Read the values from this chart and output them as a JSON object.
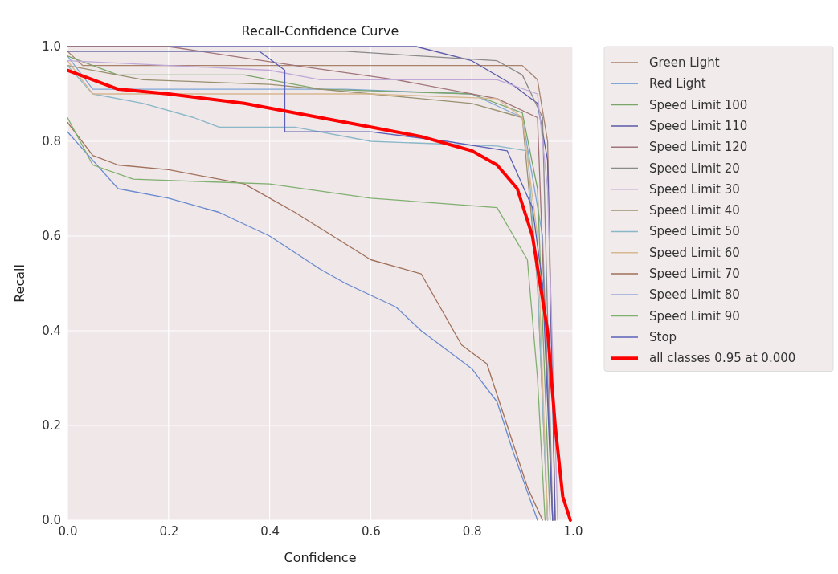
{
  "chart_data": {
    "type": "line",
    "title": "Recall-Confidence Curve",
    "xlabel": "Confidence",
    "ylabel": "Recall",
    "xlim": [
      0,
      1
    ],
    "ylim": [
      0,
      1
    ],
    "xticks": [
      {
        "value": 0,
        "label": "0.0"
      },
      {
        "value": 0.2,
        "label": "0.2"
      },
      {
        "value": 0.4,
        "label": "0.4"
      },
      {
        "value": 0.6,
        "label": "0.6"
      },
      {
        "value": 0.8,
        "label": "0.8"
      },
      {
        "value": 1,
        "label": "1.0"
      }
    ],
    "yticks": [
      {
        "value": 0,
        "label": "0.0"
      },
      {
        "value": 0.2,
        "label": "0.2"
      },
      {
        "value": 0.4,
        "label": "0.4"
      },
      {
        "value": 0.6,
        "label": "0.6"
      },
      {
        "value": 0.8,
        "label": "0.8"
      },
      {
        "value": 1,
        "label": "1.0"
      }
    ],
    "grid": true,
    "legend": "right",
    "series": [
      {
        "name": "Green Light",
        "color": "#a8826a",
        "x": [
          0,
          0.03,
          0.9,
          0.93,
          0.95,
          0.965
        ],
        "values": [
          0.99,
          0.96,
          0.96,
          0.93,
          0.8,
          0
        ]
      },
      {
        "name": "Red Light",
        "color": "#7fa6d6",
        "x": [
          0,
          0.05,
          0.55,
          0.8,
          0.9,
          0.94,
          0.96
        ],
        "values": [
          0.98,
          0.91,
          0.91,
          0.9,
          0.85,
          0.6,
          0
        ]
      },
      {
        "name": "Speed Limit 100",
        "color": "#7aa66a",
        "x": [
          0,
          0.1,
          0.35,
          0.5,
          0.8,
          0.9,
          0.93,
          0.955
        ],
        "values": [
          0.98,
          0.94,
          0.94,
          0.91,
          0.9,
          0.86,
          0.7,
          0
        ]
      },
      {
        "name": "Speed Limit 110",
        "color": "#5a5aa8",
        "x": [
          0,
          0.69,
          0.8,
          0.88,
          0.93,
          0.95,
          0.965
        ],
        "values": [
          1,
          1,
          0.97,
          0.92,
          0.88,
          0.76,
          0
        ]
      },
      {
        "name": "Speed Limit 120",
        "color": "#a07478",
        "x": [
          0,
          0.2,
          0.45,
          0.65,
          0.85,
          0.93,
          0.96
        ],
        "values": [
          1,
          1,
          0.96,
          0.93,
          0.89,
          0.85,
          0
        ]
      },
      {
        "name": "Speed Limit 20",
        "color": "#8a8a8a",
        "x": [
          0,
          0.55,
          0.85,
          0.9,
          0.94,
          0.96
        ],
        "values": [
          0.99,
          0.99,
          0.97,
          0.94,
          0.85,
          0
        ]
      },
      {
        "name": "Speed Limit 30",
        "color": "#c0a8d8",
        "x": [
          0,
          0.2,
          0.4,
          0.5,
          0.85,
          0.93,
          0.95,
          0.97
        ],
        "values": [
          0.97,
          0.96,
          0.95,
          0.93,
          0.93,
          0.9,
          0.7,
          0
        ]
      },
      {
        "name": "Speed Limit 40",
        "color": "#9a9070",
        "x": [
          0,
          0.15,
          0.4,
          0.6,
          0.8,
          0.9,
          0.93,
          0.95
        ],
        "values": [
          0.96,
          0.93,
          0.92,
          0.9,
          0.88,
          0.85,
          0.5,
          0
        ]
      },
      {
        "name": "Speed Limit 50",
        "color": "#8ab8c8",
        "x": [
          0,
          0.05,
          0.15,
          0.25,
          0.3,
          0.45,
          0.6,
          0.85,
          0.91,
          0.93,
          0.95
        ],
        "values": [
          0.96,
          0.9,
          0.88,
          0.85,
          0.83,
          0.83,
          0.8,
          0.79,
          0.78,
          0.5,
          0
        ]
      },
      {
        "name": "Speed Limit 60",
        "color": "#d8b890",
        "x": [
          0,
          0.05,
          0.6,
          0.85,
          0.9,
          0.93,
          0.95
        ],
        "values": [
          0.97,
          0.9,
          0.9,
          0.89,
          0.85,
          0.6,
          0
        ]
      },
      {
        "name": "Speed Limit 70",
        "color": "#a0705a",
        "x": [
          0,
          0.05,
          0.1,
          0.2,
          0.35,
          0.45,
          0.6,
          0.7,
          0.78,
          0.83,
          0.87,
          0.91,
          0.94
        ],
        "values": [
          0.84,
          0.77,
          0.75,
          0.74,
          0.71,
          0.65,
          0.55,
          0.52,
          0.37,
          0.33,
          0.2,
          0.07,
          0
        ]
      },
      {
        "name": "Speed Limit 80",
        "color": "#6a8ad0",
        "x": [
          0,
          0.05,
          0.1,
          0.2,
          0.3,
          0.4,
          0.5,
          0.55,
          0.65,
          0.7,
          0.8,
          0.85,
          0.88,
          0.91,
          0.93
        ],
        "values": [
          0.82,
          0.76,
          0.7,
          0.68,
          0.65,
          0.6,
          0.53,
          0.5,
          0.45,
          0.4,
          0.32,
          0.25,
          0.15,
          0.06,
          0
        ]
      },
      {
        "name": "Speed Limit 90",
        "color": "#80b070",
        "x": [
          0,
          0.05,
          0.13,
          0.4,
          0.6,
          0.85,
          0.91,
          0.93,
          0.945
        ],
        "values": [
          0.85,
          0.75,
          0.72,
          0.71,
          0.68,
          0.66,
          0.55,
          0.3,
          0
        ]
      },
      {
        "name": "Stop",
        "color": "#5a60b8",
        "x": [
          0,
          0.38,
          0.43,
          0.43,
          0.6,
          0.75,
          0.87,
          0.92,
          0.94,
          0.96
        ],
        "values": [
          0.99,
          0.99,
          0.95,
          0.82,
          0.82,
          0.8,
          0.78,
          0.66,
          0.5,
          0
        ]
      },
      {
        "name": "all classes 0.95 at 0.000",
        "color": "#ff0000",
        "x": [
          0,
          0.1,
          0.2,
          0.35,
          0.5,
          0.6,
          0.7,
          0.8,
          0.85,
          0.89,
          0.92,
          0.95,
          0.965,
          0.98,
          0.995
        ],
        "values": [
          0.95,
          0.91,
          0.9,
          0.88,
          0.85,
          0.83,
          0.81,
          0.78,
          0.75,
          0.7,
          0.6,
          0.4,
          0.2,
          0.05,
          0
        ]
      }
    ]
  }
}
